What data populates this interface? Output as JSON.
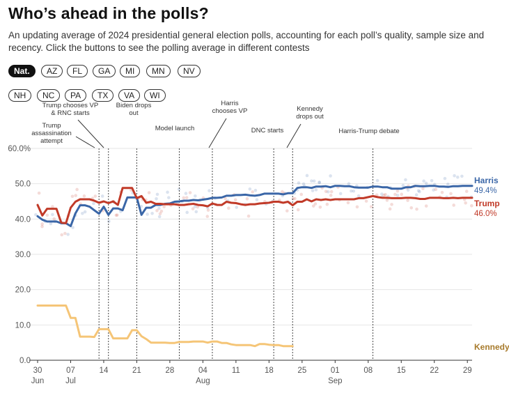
{
  "title": "Who’s ahead in the polls?",
  "subtitle": "An updating average of 2024 presidential general election polls, accounting for each poll’s quality, sample size and recency. Click the buttons to see the polling average in different contests",
  "contests": [
    "Nat.",
    "AZ",
    "FL",
    "GA",
    "MI",
    "MN",
    "NV",
    "NH",
    "NC",
    "PA",
    "TX",
    "VA",
    "WI"
  ],
  "active_contest": "Nat.",
  "chart_data": {
    "type": "line",
    "title": "Who’s ahead in the polls?",
    "ylabel": "",
    "ylim": [
      0,
      60
    ],
    "y_ticks": [
      "0.0",
      "10.0",
      "20.0",
      "30.0",
      "40.0",
      "50.0",
      "60.0%"
    ],
    "y_tick_values": [
      0,
      10,
      20,
      30,
      40,
      50,
      60
    ],
    "xlim": [
      0,
      92
    ],
    "x_ticks": [
      {
        "day": 0,
        "label": "30",
        "month": "Jun"
      },
      {
        "day": 7,
        "label": "07",
        "month": "Jul"
      },
      {
        "day": 14,
        "label": "14"
      },
      {
        "day": 21,
        "label": "21"
      },
      {
        "day": 28,
        "label": "28"
      },
      {
        "day": 35,
        "label": "04",
        "month": "Aug"
      },
      {
        "day": 42,
        "label": "11"
      },
      {
        "day": 49,
        "label": "18"
      },
      {
        "day": 56,
        "label": "25"
      },
      {
        "day": 63,
        "label": "01",
        "month": "Sep"
      },
      {
        "day": 70,
        "label": "08"
      },
      {
        "day": 77,
        "label": "15"
      },
      {
        "day": 84,
        "label": "22"
      },
      {
        "day": 91,
        "label": "29"
      }
    ],
    "events": [
      {
        "day": 13,
        "label": "Trump assassination attempt",
        "lines": [
          "Trump",
          "assassination",
          "attempt"
        ]
      },
      {
        "day": 15,
        "label": "Trump chooses VP & RNC starts",
        "lines": [
          "Trump chooses VP",
          "& RNC starts"
        ]
      },
      {
        "day": 21,
        "label": "Biden drops out",
        "lines": [
          "Biden drops",
          "out"
        ]
      },
      {
        "day": 30,
        "label": "Model launch",
        "lines": [
          "Model launch"
        ]
      },
      {
        "day": 37,
        "label": "Harris chooses VP",
        "lines": [
          "Harris",
          "chooses VP"
        ]
      },
      {
        "day": 50,
        "label": "DNC starts",
        "lines": [
          "DNC starts"
        ]
      },
      {
        "day": 54,
        "label": "Kennedy drops out",
        "lines": [
          "Kennedy",
          "drops out"
        ]
      },
      {
        "day": 71,
        "label": "Harris-Trump debate",
        "lines": [
          "Harris-Trump debate"
        ]
      }
    ],
    "series": [
      {
        "name": "Harris",
        "color": "#3a66a7",
        "final_value": "49.4%",
        "x": [
          0,
          1,
          2,
          3,
          4,
          5,
          6,
          7,
          8,
          9,
          10,
          11,
          12,
          13,
          14,
          15,
          16,
          17,
          18,
          19,
          20,
          21,
          22,
          23,
          24,
          25,
          26,
          27,
          28,
          29,
          30,
          31,
          32,
          33,
          34,
          35,
          36,
          37,
          38,
          39,
          40,
          41,
          42,
          43,
          44,
          45,
          46,
          47,
          48,
          49,
          50,
          51,
          52,
          53,
          54,
          55,
          56,
          57,
          58,
          59,
          60,
          61,
          62,
          63,
          64,
          65,
          66,
          67,
          68,
          69,
          70,
          71,
          72,
          73,
          74,
          75,
          76,
          77,
          78,
          79,
          80,
          81,
          82,
          83,
          84,
          85,
          86,
          87,
          88,
          89,
          90,
          91,
          92
        ],
        "values": [
          40.8,
          39.8,
          39.3,
          39.3,
          39.3,
          38.8,
          38.8,
          38.0,
          41.6,
          43.9,
          43.9,
          43.5,
          42.5,
          41.5,
          43.5,
          41.2,
          43.0,
          43.0,
          42.5,
          46.1,
          46.1,
          46.1,
          41.2,
          43.2,
          43.2,
          44.0,
          44.0,
          44.3,
          44.4,
          44.9,
          45.0,
          45.2,
          45.2,
          45.4,
          45.3,
          45.5,
          45.7,
          46.0,
          46.0,
          46.1,
          46.6,
          46.6,
          46.8,
          46.8,
          46.9,
          46.7,
          46.6,
          46.8,
          47.2,
          47.2,
          47.2,
          47.2,
          47.0,
          47.3,
          47.3,
          48.8,
          49.0,
          49.0,
          48.8,
          49.2,
          49.2,
          49.3,
          49.0,
          49.4,
          49.4,
          49.3,
          49.3,
          49.0,
          48.9,
          48.9,
          48.9,
          49.2,
          49.2,
          49.0,
          49.0,
          48.6,
          48.6,
          48.6,
          49.0,
          49.0,
          49.4,
          49.3,
          49.3,
          49.4,
          49.4,
          49.2,
          49.2,
          49.1,
          49.3,
          49.3,
          49.4,
          49.4,
          49.4
        ]
      },
      {
        "name": "Trump",
        "color": "#c13a28",
        "final_value": "46.0%",
        "x": [
          0,
          1,
          2,
          3,
          4,
          5,
          6,
          7,
          8,
          9,
          10,
          11,
          12,
          13,
          14,
          15,
          16,
          17,
          18,
          19,
          20,
          21,
          22,
          23,
          24,
          25,
          26,
          27,
          28,
          29,
          30,
          31,
          32,
          33,
          34,
          35,
          36,
          37,
          38,
          39,
          40,
          41,
          42,
          43,
          44,
          45,
          46,
          47,
          48,
          49,
          50,
          51,
          52,
          53,
          54,
          55,
          56,
          57,
          58,
          59,
          60,
          61,
          62,
          63,
          64,
          65,
          66,
          67,
          68,
          69,
          70,
          71,
          72,
          73,
          74,
          75,
          76,
          77,
          78,
          79,
          80,
          81,
          82,
          83,
          84,
          85,
          86,
          87,
          88,
          89,
          90,
          91,
          92
        ],
        "values": [
          44.0,
          41.0,
          42.9,
          42.9,
          42.9,
          39.0,
          38.8,
          43.2,
          44.9,
          45.6,
          45.6,
          45.6,
          45.2,
          44.6,
          45.0,
          44.5,
          45.0,
          44.0,
          48.8,
          48.8,
          48.8,
          45.9,
          46.5,
          44.6,
          44.9,
          44.3,
          44.3,
          44.2,
          44.2,
          44.2,
          44.0,
          44.0,
          44.2,
          44.3,
          44.0,
          43.9,
          43.6,
          44.4,
          44.0,
          44.0,
          44.9,
          44.6,
          44.5,
          44.2,
          44.0,
          44.2,
          44.2,
          44.4,
          44.5,
          44.6,
          44.9,
          44.9,
          44.6,
          44.9,
          43.9,
          44.9,
          44.9,
          45.6,
          45.0,
          45.6,
          45.4,
          45.6,
          45.4,
          45.6,
          45.6,
          45.6,
          45.6,
          45.6,
          45.9,
          45.9,
          46.2,
          46.5,
          46.2,
          46.0,
          46.0,
          45.9,
          45.9,
          45.9,
          46.0,
          46.0,
          45.9,
          45.7,
          45.7,
          46.0,
          46.0,
          46.0,
          45.9,
          45.9,
          46.0,
          45.9,
          46.0,
          46.0,
          46.0
        ]
      },
      {
        "name": "Kennedy",
        "color": "#f5c577",
        "final_value": "",
        "x": [
          0,
          1,
          2,
          3,
          4,
          5,
          6,
          7,
          8,
          9,
          10,
          11,
          12,
          13,
          14,
          15,
          16,
          17,
          18,
          19,
          20,
          21,
          22,
          23,
          24,
          25,
          26,
          27,
          28,
          29,
          30,
          31,
          32,
          33,
          34,
          35,
          36,
          37,
          38,
          39,
          40,
          41,
          42,
          43,
          44,
          45,
          46,
          47,
          48,
          49,
          50,
          51,
          52,
          53,
          54
        ],
        "values": [
          15.5,
          15.5,
          15.5,
          15.5,
          15.5,
          15.5,
          15.5,
          12.0,
          12.0,
          6.7,
          6.7,
          6.7,
          6.6,
          8.8,
          8.8,
          8.8,
          6.2,
          6.2,
          6.2,
          6.2,
          8.5,
          8.5,
          6.8,
          6.0,
          5.0,
          5.0,
          5.0,
          5.0,
          4.9,
          4.9,
          5.2,
          5.2,
          5.2,
          5.3,
          5.3,
          5.3,
          5.0,
          5.3,
          5.3,
          4.9,
          4.9,
          4.5,
          4.3,
          4.3,
          4.3,
          4.3,
          4.0,
          4.6,
          4.6,
          4.4,
          4.3,
          4.3,
          4.0,
          4.0,
          4.0
        ]
      }
    ],
    "note": "Individual polls shown as faint dots behind the averages"
  }
}
